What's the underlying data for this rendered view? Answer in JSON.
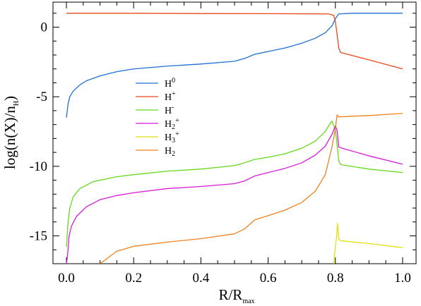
{
  "chart_data": {
    "type": "line",
    "xlabel": {
      "main": "R/R",
      "sub": "max"
    },
    "ylabel": {
      "pre": "log(n(X)/n",
      "sub": "H",
      "post": ")"
    },
    "xlim": [
      -0.04,
      1.04
    ],
    "ylim": [
      -17,
      1.8
    ],
    "grid": false,
    "legend_position": "upper-middle",
    "xticks": [
      {
        "v": 0.0,
        "label": "0.0"
      },
      {
        "v": 0.2,
        "label": "0.2"
      },
      {
        "v": 0.4,
        "label": "0.4"
      },
      {
        "v": 0.6,
        "label": "0.6"
      },
      {
        "v": 0.8,
        "label": "0.8"
      },
      {
        "v": 1.0,
        "label": "1.0"
      }
    ],
    "yticks": [
      {
        "v": 0,
        "label": "0"
      },
      {
        "v": -5,
        "label": "-5"
      },
      {
        "v": -10,
        "label": "-10"
      },
      {
        "v": -15,
        "label": "-15"
      }
    ],
    "series": [
      {
        "name": {
          "base": "H",
          "sup": "0",
          "sub": ""
        },
        "color": "#1f6fd6",
        "points": [
          [
            0.0,
            -6.5
          ],
          [
            0.005,
            -5.5
          ],
          [
            0.01,
            -5.0
          ],
          [
            0.02,
            -4.6
          ],
          [
            0.04,
            -4.15
          ],
          [
            0.06,
            -3.85
          ],
          [
            0.1,
            -3.5
          ],
          [
            0.15,
            -3.2
          ],
          [
            0.2,
            -3.0
          ],
          [
            0.3,
            -2.8
          ],
          [
            0.4,
            -2.65
          ],
          [
            0.5,
            -2.45
          ],
          [
            0.53,
            -2.25
          ],
          [
            0.56,
            -1.95
          ],
          [
            0.6,
            -1.75
          ],
          [
            0.65,
            -1.5
          ],
          [
            0.7,
            -1.15
          ],
          [
            0.74,
            -0.8
          ],
          [
            0.77,
            -0.4
          ],
          [
            0.79,
            0.1
          ],
          [
            0.8,
            0.6
          ],
          [
            0.81,
            0.95
          ],
          [
            0.85,
            1.0
          ],
          [
            1.0,
            1.0
          ]
        ]
      },
      {
        "name": {
          "base": "H",
          "sup": "+",
          "sub": ""
        },
        "color": "#e8481a",
        "points": [
          [
            0.0,
            1.0
          ],
          [
            0.2,
            1.0
          ],
          [
            0.4,
            0.98
          ],
          [
            0.6,
            0.97
          ],
          [
            0.7,
            0.96
          ],
          [
            0.78,
            0.95
          ],
          [
            0.795,
            0.85
          ],
          [
            0.8,
            0.4
          ],
          [
            0.805,
            -0.5
          ],
          [
            0.81,
            -1.5
          ],
          [
            0.815,
            -1.8
          ],
          [
            0.82,
            -1.85
          ],
          [
            0.9,
            -2.35
          ],
          [
            1.0,
            -3.0
          ]
        ]
      },
      {
        "name": {
          "base": "H",
          "sup": "-",
          "sub": ""
        },
        "color": "#66d91a",
        "points": [
          [
            0.0,
            -15.8
          ],
          [
            0.005,
            -14.0
          ],
          [
            0.01,
            -13.0
          ],
          [
            0.02,
            -12.2
          ],
          [
            0.04,
            -11.6
          ],
          [
            0.08,
            -11.1
          ],
          [
            0.15,
            -10.75
          ],
          [
            0.2,
            -10.6
          ],
          [
            0.3,
            -10.35
          ],
          [
            0.4,
            -10.2
          ],
          [
            0.5,
            -9.95
          ],
          [
            0.53,
            -9.75
          ],
          [
            0.56,
            -9.5
          ],
          [
            0.6,
            -9.35
          ],
          [
            0.65,
            -9.1
          ],
          [
            0.7,
            -8.7
          ],
          [
            0.74,
            -8.2
          ],
          [
            0.77,
            -7.5
          ],
          [
            0.785,
            -6.9
          ],
          [
            0.79,
            -6.75
          ],
          [
            0.8,
            -7.4
          ],
          [
            0.805,
            -8.4
          ],
          [
            0.81,
            -9.6
          ],
          [
            0.815,
            -9.85
          ],
          [
            0.82,
            -9.9
          ],
          [
            0.9,
            -10.2
          ],
          [
            1.0,
            -10.45
          ]
        ]
      },
      {
        "name": {
          "base": "H",
          "sup": "+",
          "sub": "2"
        },
        "color": "#d81ad8",
        "points": [
          [
            0.0,
            -17
          ],
          [
            0.003,
            -16.5
          ],
          [
            0.008,
            -15.0
          ],
          [
            0.015,
            -14.3
          ],
          [
            0.03,
            -13.6
          ],
          [
            0.06,
            -12.9
          ],
          [
            0.1,
            -12.4
          ],
          [
            0.15,
            -12.1
          ],
          [
            0.2,
            -11.9
          ],
          [
            0.3,
            -11.6
          ],
          [
            0.4,
            -11.45
          ],
          [
            0.5,
            -11.25
          ],
          [
            0.53,
            -11.05
          ],
          [
            0.56,
            -10.7
          ],
          [
            0.6,
            -10.45
          ],
          [
            0.65,
            -10.15
          ],
          [
            0.7,
            -9.75
          ],
          [
            0.74,
            -9.2
          ],
          [
            0.77,
            -8.55
          ],
          [
            0.79,
            -7.7
          ],
          [
            0.8,
            -7.1
          ],
          [
            0.805,
            -7.4
          ],
          [
            0.81,
            -8.6
          ],
          [
            0.82,
            -8.7
          ],
          [
            0.9,
            -9.25
          ],
          [
            1.0,
            -9.85
          ]
        ]
      },
      {
        "name": {
          "base": "H",
          "sup": "+",
          "sub": "3"
        },
        "color": "#e0e014",
        "points": [
          [
            0.795,
            -17
          ],
          [
            0.8,
            -15.8
          ],
          [
            0.804,
            -15.0
          ],
          [
            0.806,
            -14.1
          ],
          [
            0.808,
            -14.5
          ],
          [
            0.81,
            -15.2
          ],
          [
            0.815,
            -15.35
          ],
          [
            0.9,
            -15.55
          ],
          [
            1.0,
            -15.85
          ]
        ]
      },
      {
        "name": {
          "base": "H",
          "sup": "",
          "sub": "2"
        },
        "color": "#f0821e",
        "points": [
          [
            0.1,
            -17
          ],
          [
            0.15,
            -16.1
          ],
          [
            0.2,
            -15.75
          ],
          [
            0.3,
            -15.45
          ],
          [
            0.4,
            -15.2
          ],
          [
            0.5,
            -14.85
          ],
          [
            0.53,
            -14.5
          ],
          [
            0.56,
            -13.85
          ],
          [
            0.6,
            -13.55
          ],
          [
            0.65,
            -13.15
          ],
          [
            0.7,
            -12.6
          ],
          [
            0.74,
            -11.8
          ],
          [
            0.77,
            -10.6
          ],
          [
            0.79,
            -8.6
          ],
          [
            0.8,
            -7.3
          ],
          [
            0.805,
            -6.3
          ],
          [
            0.81,
            -6.45
          ],
          [
            0.85,
            -6.4
          ],
          [
            0.9,
            -6.35
          ],
          [
            1.0,
            -6.2
          ]
        ]
      }
    ]
  }
}
